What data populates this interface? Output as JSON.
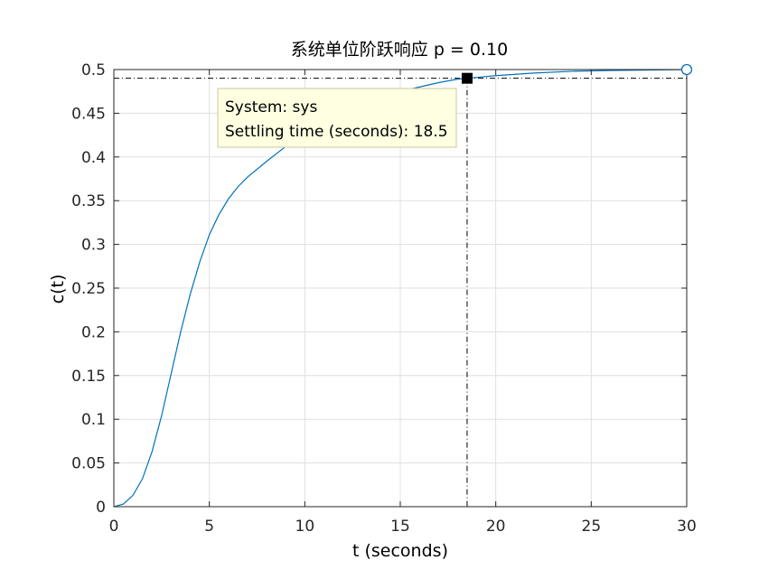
{
  "chart_data": {
    "type": "line",
    "title": "系统单位阶跃响应 p = 0.10",
    "xlabel": "t (seconds)",
    "ylabel": "c(t)",
    "xlim": [
      0,
      30
    ],
    "ylim": [
      0,
      0.5
    ],
    "xticks": [
      0,
      5,
      10,
      15,
      20,
      25,
      30
    ],
    "xtick_labels": [
      "0",
      "5",
      "10",
      "15",
      "20",
      "25",
      "30"
    ],
    "yticks": [
      0,
      0.05,
      0.1,
      0.15,
      0.2,
      0.25,
      0.3,
      0.35,
      0.4,
      0.45,
      0.5
    ],
    "ytick_labels": [
      "0",
      "0.05",
      "0.1",
      "0.15",
      "0.2",
      "0.25",
      "0.3",
      "0.35",
      "0.4",
      "0.45",
      "0.5"
    ],
    "grid": true,
    "series": [
      {
        "color": "#0072BD",
        "x": [
          0,
          0.5,
          1,
          1.5,
          2,
          2.5,
          3,
          3.5,
          4,
          4.5,
          5,
          5.5,
          6,
          6.5,
          7,
          8,
          9,
          10,
          11,
          12,
          13,
          14,
          15,
          16,
          17,
          18,
          18.5,
          20,
          22,
          24,
          26,
          28,
          30
        ],
        "y": [
          0,
          0.003,
          0.013,
          0.032,
          0.063,
          0.104,
          0.152,
          0.2,
          0.243,
          0.28,
          0.311,
          0.334,
          0.352,
          0.366,
          0.377,
          0.395,
          0.412,
          0.428,
          0.441,
          0.452,
          0.461,
          0.469,
          0.475,
          0.48,
          0.485,
          0.489,
          0.49,
          0.493,
          0.496,
          0.498,
          0.499,
          0.4995,
          0.5
        ]
      }
    ],
    "final_value": 0.5,
    "settling_band": [
      0.49,
      0.51
    ],
    "settling_marker": {
      "x": 18.5,
      "y": 0.49
    },
    "end_marker": {
      "x": 30,
      "y": 0.5
    },
    "datatip": {
      "line1": "System: sys",
      "line2": "Settling time (seconds): 18.5"
    },
    "colors": {
      "line": "#0072BD",
      "grid": "#DFDFDF",
      "axes": "#262626",
      "tip_bg": "#FFFFE1",
      "tip_border": "#C8C8A0"
    }
  }
}
